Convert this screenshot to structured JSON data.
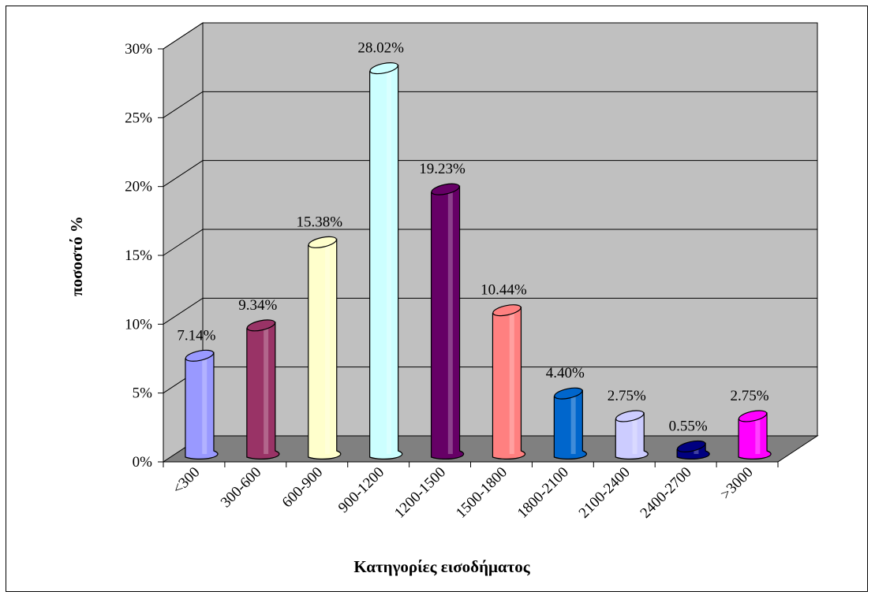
{
  "chart_data": {
    "type": "bar",
    "title": "",
    "xlabel": "Κατηγορίες εισοδήματος",
    "ylabel": "ποσοστό %",
    "ylim": [
      0,
      30
    ],
    "yticks": [
      "0%",
      "5%",
      "10%",
      "15%",
      "20%",
      "25%",
      "30%"
    ],
    "grid": true,
    "legend": "none",
    "categories": [
      "<300",
      "300-600",
      "600-900",
      "900-1200",
      "1200-1500",
      "1500-1800",
      "1800-2100",
      "2100-2400",
      "2400-2700",
      ">3000"
    ],
    "values": [
      7.14,
      9.34,
      15.38,
      28.02,
      19.23,
      10.44,
      4.4,
      2.75,
      0.55,
      2.75
    ],
    "data_labels": [
      "7.14%",
      "9.34%",
      "15.38%",
      "28.02%",
      "19.23%",
      "10.44%",
      "4.40%",
      "2.75%",
      "0.55%",
      "2.75%"
    ],
    "colors": [
      "#9999ff",
      "#993366",
      "#ffffcc",
      "#ccffff",
      "#660066",
      "#ff8080",
      "#0066cc",
      "#ccccff",
      "#000080",
      "#ff00ff"
    ],
    "wall_color": "#c0c0c0",
    "floor_color": "#808080"
  }
}
